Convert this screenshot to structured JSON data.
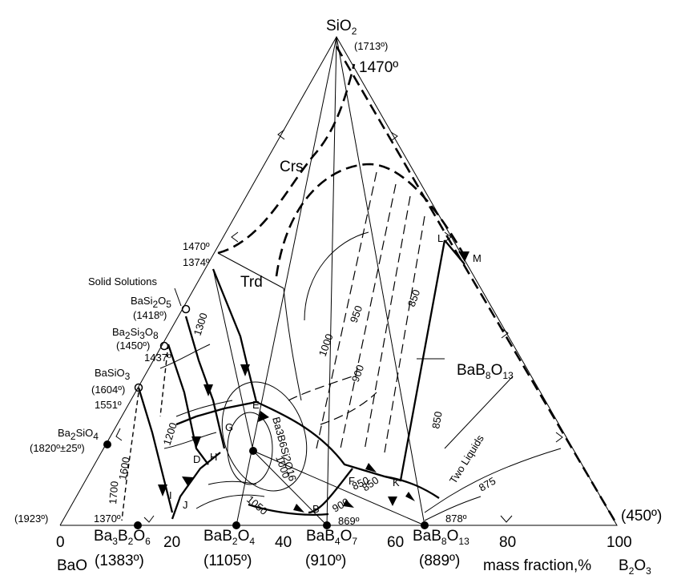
{
  "vertices": {
    "top": "SiO",
    "top_sub": "2",
    "top_temp": "(1713º)",
    "left_name": "BaO",
    "left_temp": "(1923º)",
    "right_name": "B",
    "right_sub1": "2",
    "right_mid": "O",
    "right_sub2": "3",
    "right_temp": "(450º)"
  },
  "axis": {
    "ticks": [
      "0",
      "20",
      "40",
      "60",
      "80",
      "100"
    ],
    "label": "mass fraction,%"
  },
  "phase_regions": {
    "cristobalite": "Crs",
    "tridymite": "Trd",
    "bab8o13": "BaB",
    "bab8o13_sub1": "8",
    "bab8o13_mid": "O",
    "bab8o13_sub2": "13",
    "two_liquids": "Two Liquids",
    "solid_solutions": "Solid Solutions",
    "ba3b6si2o16": "Ba3B6Si2O16"
  },
  "compounds": [
    {
      "formula": "Ba3B2O6",
      "temp": "(1383º)"
    },
    {
      "formula": "BaB2O4",
      "temp": "(1105º)"
    },
    {
      "formula": "BaB4O7",
      "temp": "(910º)"
    },
    {
      "formula": "BaB8O13",
      "temp": "(889º)"
    },
    {
      "formula": "BaSi2O5",
      "temp": "(1418º)"
    },
    {
      "formula": "Ba2Si3O8",
      "temp": "(1450º)"
    },
    {
      "formula": "BaSiO3",
      "temp": "(1604º)"
    },
    {
      "formula": "Ba2SiO4",
      "temp": "(1820º±25º)"
    }
  ],
  "temperatures": {
    "t1470_top": "1470º",
    "t1470_left": "1470º",
    "t1374": "1374º",
    "t1437": "1437º",
    "t1551": "1551º",
    "t1370": "1370º",
    "t878": "878º",
    "t869": "869º"
  },
  "isotherms": [
    "1300",
    "1200",
    "1600",
    "1700",
    "1000",
    "950",
    "900",
    "850",
    "850",
    "850",
    "875",
    "1000",
    "1050",
    "900",
    "850",
    "875",
    "875"
  ],
  "points": [
    "L",
    "M",
    "E",
    "G",
    "D",
    "H",
    "I",
    "J",
    "F",
    "K",
    "B"
  ]
}
